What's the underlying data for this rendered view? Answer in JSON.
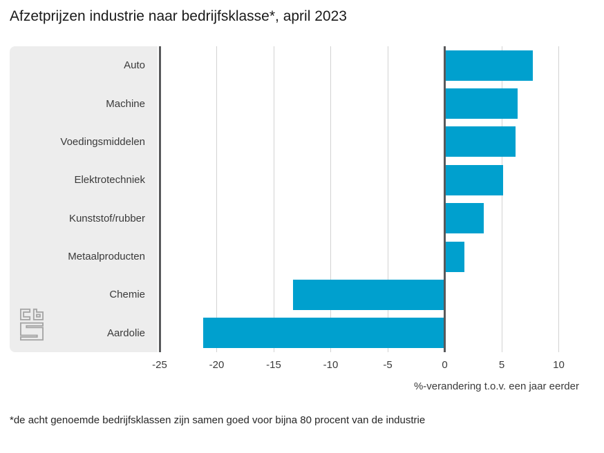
{
  "chart_data": {
    "type": "bar",
    "orientation": "horizontal",
    "title": "Afzetprijzen industrie naar bedrijfsklasse*, april 2023",
    "categories": [
      "Auto",
      "Machine",
      "Voedingsmiddelen",
      "Elektrotechniek",
      "Kunststof/rubber",
      "Metaalproducten",
      "Chemie",
      "Aardolie"
    ],
    "values": [
      7.7,
      6.4,
      6.2,
      5.1,
      3.4,
      1.7,
      -13.3,
      -21.2
    ],
    "xlabel": "%-verandering t.o.v. een jaar eerder",
    "xticks": [
      -25,
      -20,
      -15,
      -10,
      -5,
      0,
      5,
      10
    ],
    "xlim": [
      -25,
      12.2
    ],
    "grid": "vertical",
    "legend": "none",
    "bar_color": "#00a0ce",
    "footnote": "*de acht genoemde bedrijfsklassen zijn samen goed voor bijna 80 procent van de industrie"
  },
  "branding": {
    "logo_name": "cbs-logo",
    "logo_color": "#a6a6a6"
  },
  "colors": {
    "panel_bg": "#ededed",
    "gridline": "#d2d2d2",
    "axis_dark": "#58595b",
    "text": "#3a3a3a"
  }
}
